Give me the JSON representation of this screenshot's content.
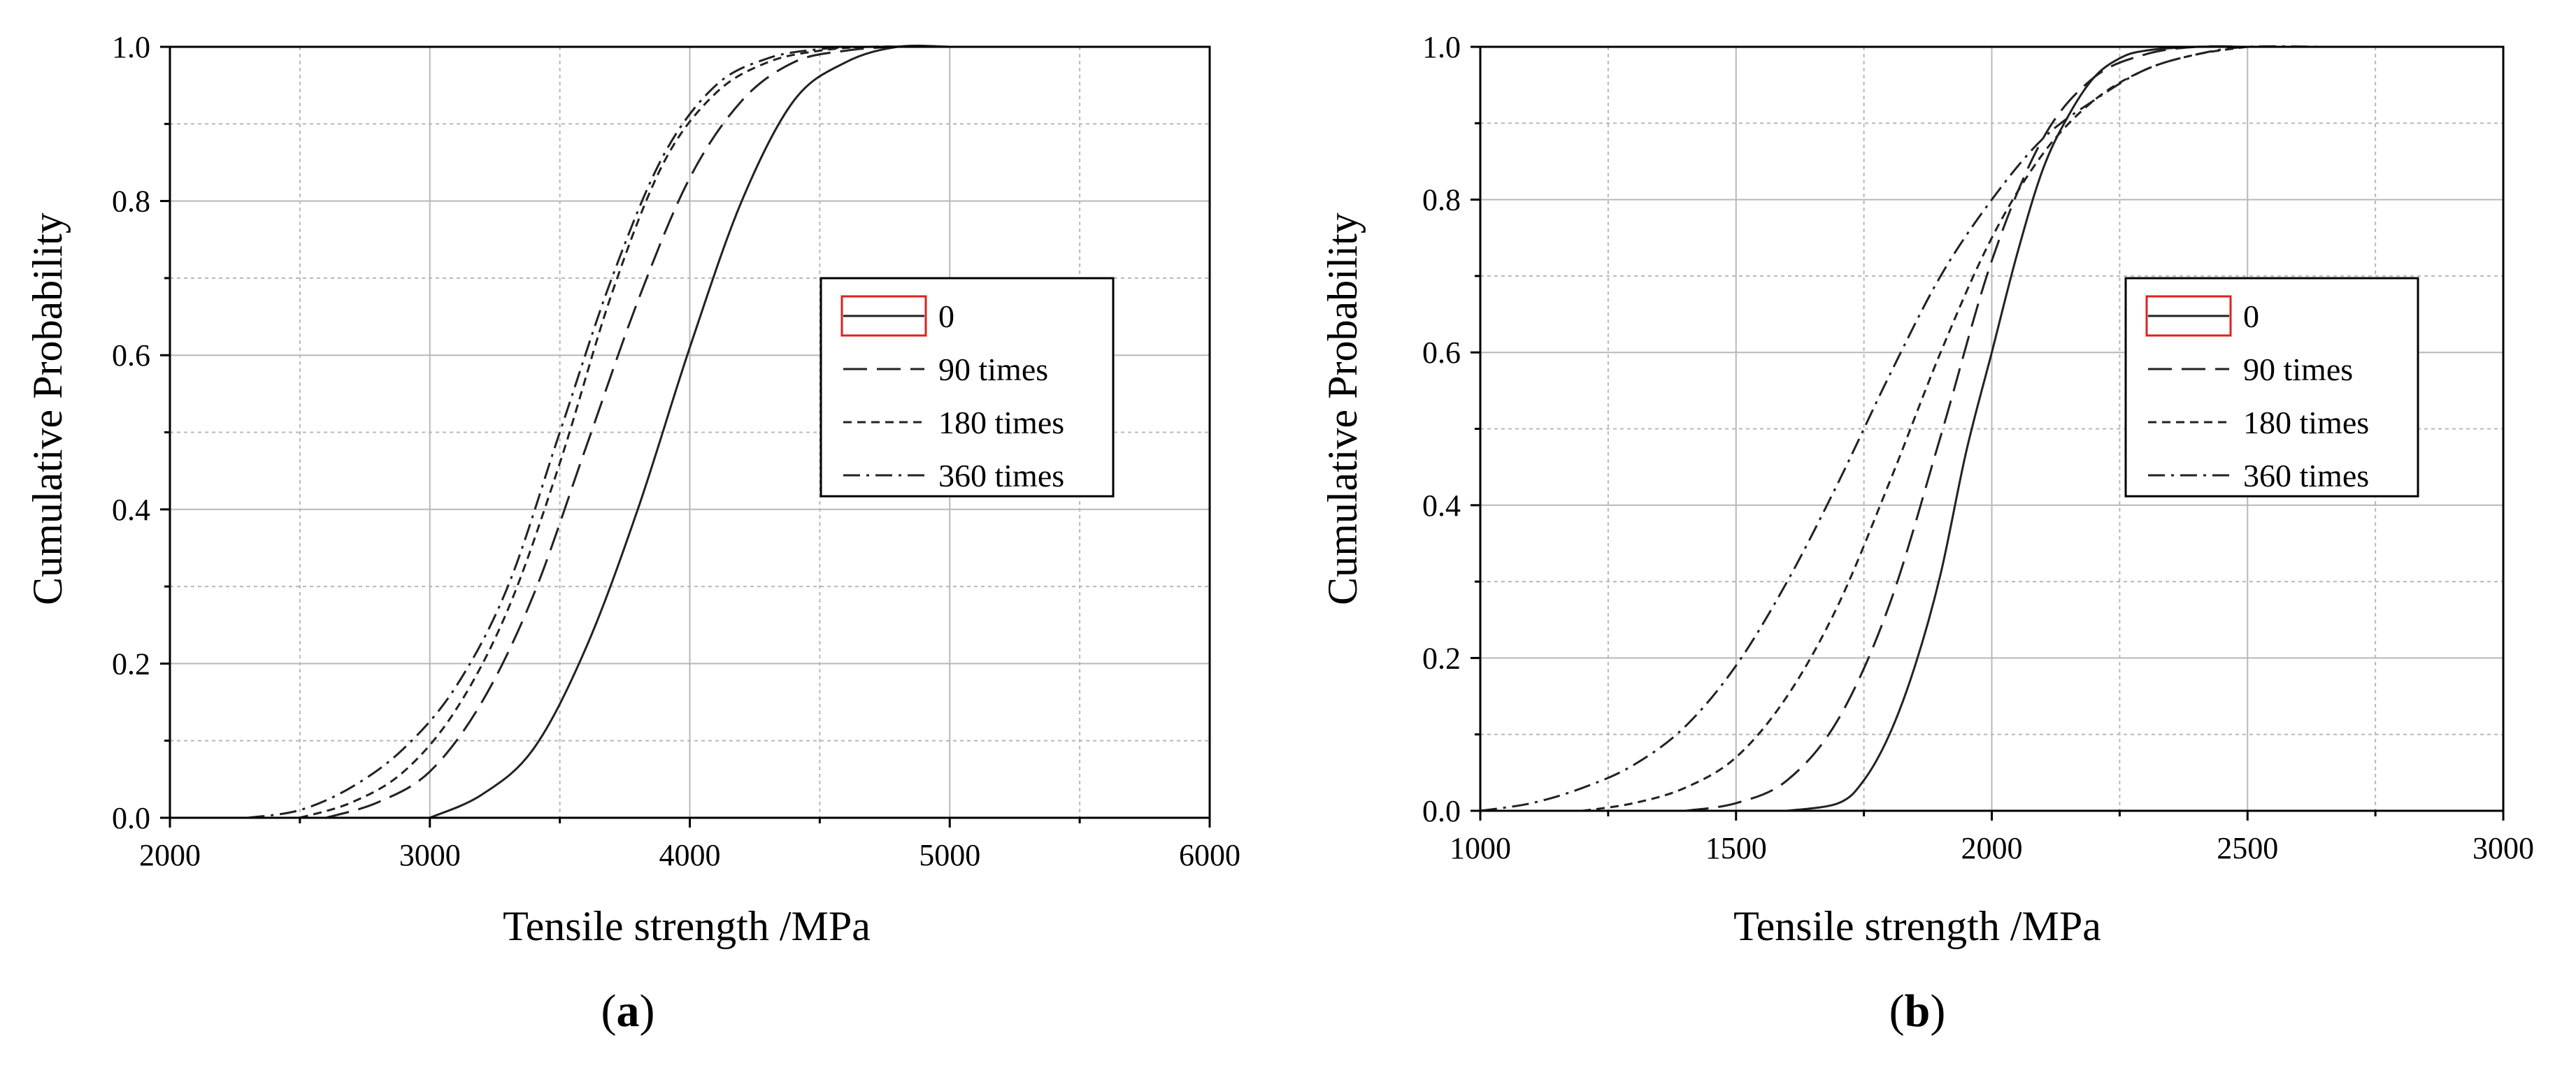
{
  "chart_data": [
    {
      "panel": "a",
      "type": "line",
      "xlabel": "Tensile strength /MPa",
      "ylabel": "Cumulative Probability",
      "xlim": [
        2000,
        6000
      ],
      "ylim": [
        0,
        1
      ],
      "xticks": [
        "2000",
        "3000",
        "4000",
        "5000",
        "6000"
      ],
      "yticks": [
        "0.0",
        "0.2",
        "0.4",
        "0.6",
        "0.8",
        "1.0"
      ],
      "grid": true,
      "legend_position": "center-right",
      "series": [
        {
          "name": "0",
          "style": "solid",
          "x": [
            3000,
            3200,
            3400,
            3600,
            3800,
            4000,
            4200,
            4400,
            4600,
            4800,
            5000
          ],
          "y": [
            0.0,
            0.03,
            0.09,
            0.22,
            0.4,
            0.61,
            0.8,
            0.93,
            0.98,
            1.0,
            1.0
          ]
        },
        {
          "name": "90 times",
          "style": "long-dash",
          "x": [
            2600,
            2800,
            3000,
            3200,
            3400,
            3600,
            3800,
            4000,
            4200,
            4400,
            4600,
            4800,
            5000
          ],
          "y": [
            0.0,
            0.02,
            0.06,
            0.15,
            0.29,
            0.48,
            0.67,
            0.83,
            0.93,
            0.98,
            0.995,
            1.0,
            1.0
          ]
        },
        {
          "name": "180 times",
          "style": "short-dash",
          "x": [
            2500,
            2700,
            2900,
            3100,
            3300,
            3500,
            3700,
            3900,
            4100,
            4300,
            4500,
            4700,
            5000
          ],
          "y": [
            0.0,
            0.02,
            0.06,
            0.14,
            0.27,
            0.46,
            0.68,
            0.85,
            0.94,
            0.98,
            0.995,
            1.0,
            1.0
          ]
        },
        {
          "name": "360 times",
          "style": "dash-dot",
          "x": [
            2300,
            2500,
            2700,
            2900,
            3100,
            3300,
            3500,
            3700,
            3900,
            4100,
            4300,
            4500,
            4700,
            5000
          ],
          "y": [
            0.0,
            0.01,
            0.04,
            0.09,
            0.17,
            0.3,
            0.5,
            0.7,
            0.86,
            0.95,
            0.985,
            0.997,
            1.0,
            1.0
          ]
        }
      ]
    },
    {
      "panel": "b",
      "type": "line",
      "xlabel": "Tensile strength /MPa",
      "ylabel": "Cumulative Probability",
      "xlim": [
        1000,
        3000
      ],
      "ylim": [
        0,
        1
      ],
      "xticks": [
        "1000",
        "1500",
        "2000",
        "2500",
        "3000"
      ],
      "yticks": [
        "0.0",
        "0.2",
        "0.4",
        "0.6",
        "0.8",
        "1.0"
      ],
      "grid": true,
      "legend_position": "center-right",
      "series": [
        {
          "name": "0",
          "style": "solid",
          "x": [
            1600,
            1700,
            1750,
            1800,
            1850,
            1900,
            1950,
            2000,
            2050,
            2100,
            2150,
            2200,
            2250,
            2300,
            2400,
            2500
          ],
          "y": [
            0.0,
            0.01,
            0.04,
            0.1,
            0.19,
            0.31,
            0.47,
            0.6,
            0.73,
            0.84,
            0.91,
            0.96,
            0.985,
            0.995,
            1.0,
            1.0
          ]
        },
        {
          "name": "90 times",
          "style": "long-dash",
          "x": [
            1400,
            1500,
            1600,
            1700,
            1800,
            1900,
            2000,
            2100,
            2200,
            2300,
            2400,
            2500
          ],
          "y": [
            0.0,
            0.01,
            0.04,
            0.12,
            0.27,
            0.49,
            0.72,
            0.88,
            0.96,
            0.99,
            1.0,
            1.0
          ]
        },
        {
          "name": "180 times",
          "style": "short-dash",
          "x": [
            1200,
            1300,
            1400,
            1500,
            1600,
            1700,
            1800,
            1900,
            2000,
            2100,
            2200,
            2300,
            2400,
            2500
          ],
          "y": [
            0.0,
            0.01,
            0.03,
            0.07,
            0.15,
            0.27,
            0.43,
            0.6,
            0.75,
            0.86,
            0.93,
            0.97,
            0.99,
            1.0
          ]
        },
        {
          "name": "360 times",
          "style": "dash-dot",
          "x": [
            1000,
            1100,
            1200,
            1300,
            1400,
            1500,
            1600,
            1700,
            1800,
            1900,
            2000,
            2100,
            2200,
            2300,
            2400,
            2500,
            2650
          ],
          "y": [
            0.0,
            0.01,
            0.03,
            0.06,
            0.11,
            0.19,
            0.3,
            0.43,
            0.57,
            0.7,
            0.8,
            0.88,
            0.93,
            0.97,
            0.99,
            1.0,
            1.0
          ]
        }
      ]
    }
  ],
  "panel_labels": [
    "a",
    "b"
  ]
}
